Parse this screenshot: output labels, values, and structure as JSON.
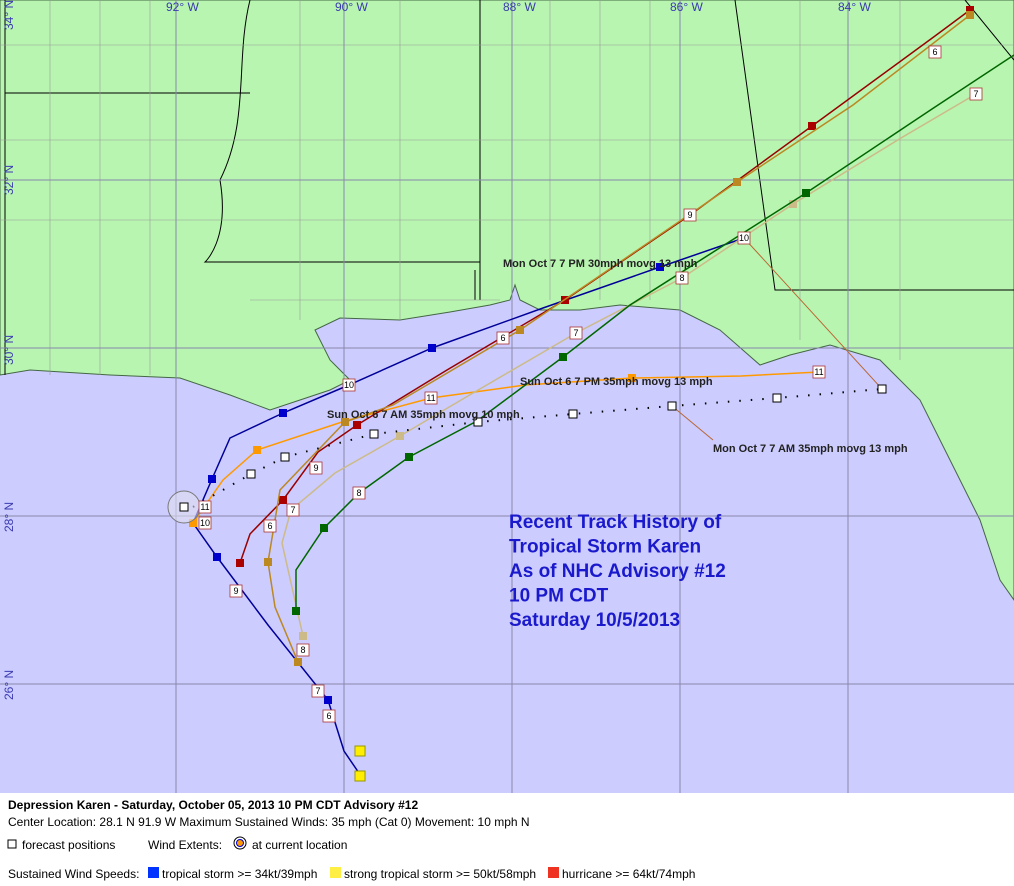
{
  "lon_labels": [
    "92° W",
    "90° W",
    "88° W",
    "86° W",
    "84° W"
  ],
  "lat_labels": [
    "34° N",
    "32° N",
    "30° N",
    "28° N",
    "26° N"
  ],
  "annotations": [
    "Mon Oct 7 7 PM 30mph movg 13 mph",
    "Sun Oct 6 7 PM 35mph movg 13 mph",
    "Sun Oct 6 7 AM 35mph movg 10 mph",
    "Mon Oct 7 7 AM 35mph movg 13 mph"
  ],
  "title_lines": [
    "Recent Track History of",
    "Tropical Storm Karen",
    "As of NHC Advisory #12",
    "10 PM CDT",
    "Saturday 10/5/2013"
  ],
  "track_labels": [
    "10",
    "11",
    "11",
    "6",
    "7",
    "9",
    "10",
    "8",
    "6",
    "7",
    "9",
    "6",
    "7",
    "8",
    "11",
    "10",
    "9",
    "8",
    "7",
    "6"
  ],
  "footer": {
    "headline": "Depression Karen  -  Saturday, October 05, 2013  10 PM CDT   Advisory #12",
    "details": "Center Location: 28.1 N  91.9 W   Maximum Sustained Winds: 35 mph (Cat 0)  Movement: 10 mph N",
    "forecast": "forecast positions",
    "wind_extents": "Wind Extents:",
    "current": "at current location",
    "speeds": "Sustained Wind Speeds:",
    "legend": [
      "tropical storm >= 34kt/39mph",
      "strong tropical storm >= 50kt/58mph",
      "hurricane >= 64kt/74mph"
    ]
  }
}
